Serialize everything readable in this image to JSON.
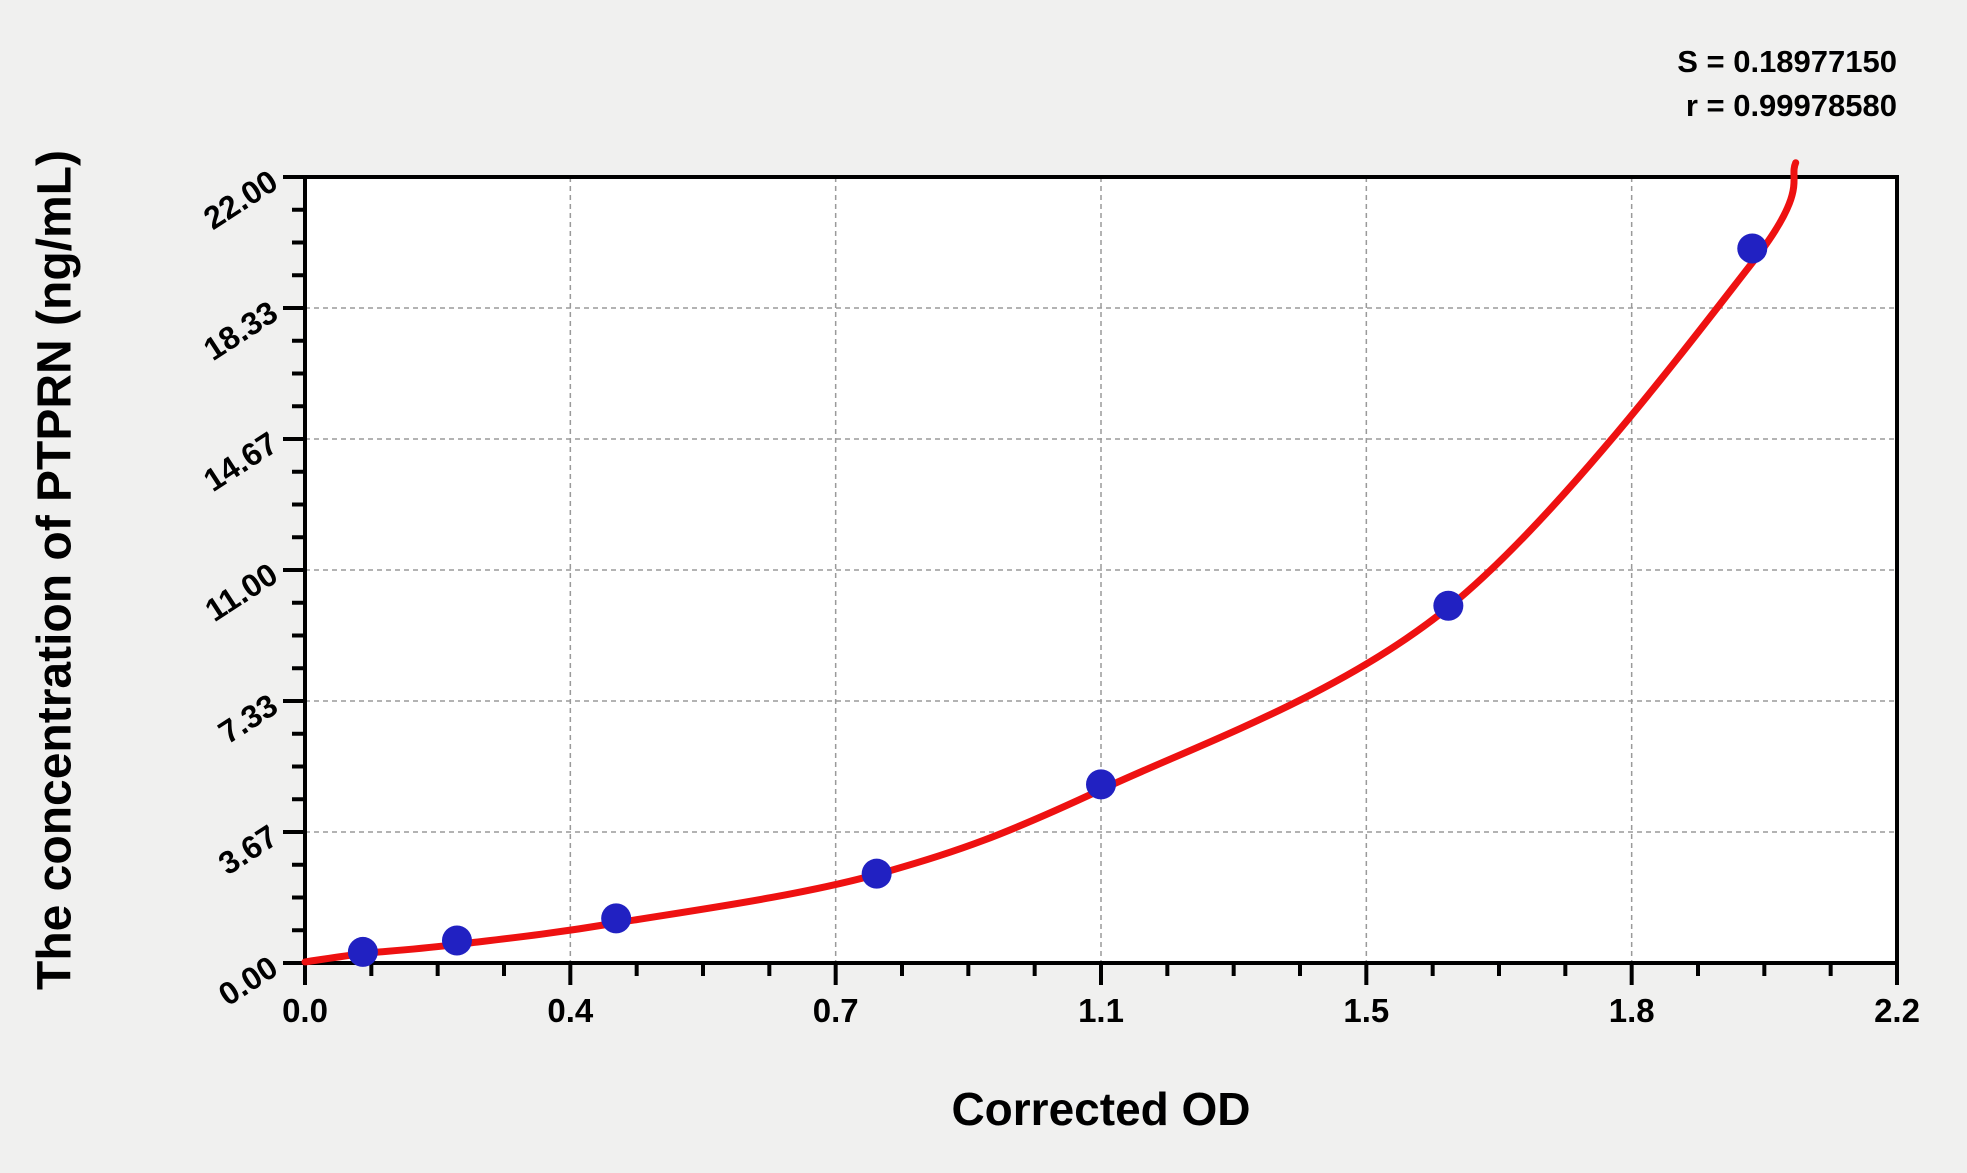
{
  "stats": {
    "s": "S = 0.18977150",
    "r": "r = 0.99978580"
  },
  "chart_data": {
    "type": "scatter",
    "title": "",
    "xlabel": "Corrected OD",
    "ylabel": "The concentration of PTPRN (ng/mL)",
    "xlim": [
      0,
      2.2
    ],
    "ylim": [
      0,
      22
    ],
    "x_tick_labels": [
      "0.0",
      "0.4",
      "0.7",
      "1.1",
      "1.5",
      "1.8",
      "2.2"
    ],
    "y_tick_labels": [
      "0.00",
      "3.67",
      "7.33",
      "11.00",
      "14.67",
      "18.33",
      "22.00"
    ],
    "minor_ticks_per_major": 4,
    "grid": true,
    "grid_style": "dashed",
    "legend_position": "none",
    "series": [
      {
        "name": "standard-points",
        "type": "scatter",
        "x": [
          0.08,
          0.21,
          0.43,
          0.79,
          1.1,
          1.58,
          2.0
        ],
        "y": [
          0.31,
          0.63,
          1.25,
          2.5,
          5.0,
          10.0,
          20.0
        ]
      },
      {
        "name": "fitted-curve",
        "type": "line",
        "points": [
          [
            0.0,
            0.03
          ],
          [
            0.08,
            0.26
          ],
          [
            0.21,
            0.52
          ],
          [
            0.43,
            1.12
          ],
          [
            0.79,
            2.48
          ],
          [
            1.1,
            4.85
          ],
          [
            1.58,
            9.95
          ],
          [
            2.0,
            19.6
          ],
          [
            2.06,
            22.4
          ]
        ]
      }
    ]
  },
  "colors": {
    "background": "#f0f0ef",
    "plot_background": "#ffffff",
    "frame": "#000000",
    "grid": "#9a9a9a",
    "point_fill": "#2121c2",
    "curve": "#ee1111",
    "text": "#000000"
  }
}
